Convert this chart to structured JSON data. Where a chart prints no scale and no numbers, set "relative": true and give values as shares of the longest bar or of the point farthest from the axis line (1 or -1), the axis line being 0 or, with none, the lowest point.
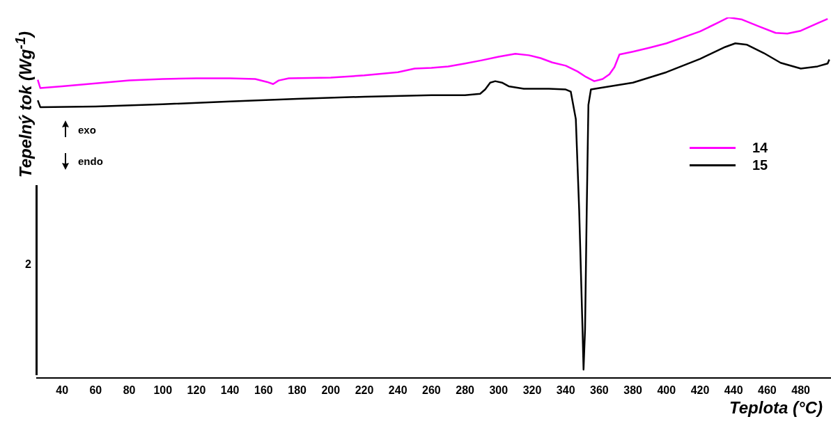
{
  "chart_data": {
    "type": "line",
    "relative": true,
    "xlabel": "Teplota (°C)",
    "ylabel": "Tepelný tok (Wg$^{-1}$)",
    "xlim": [
      25,
      498
    ],
    "xticks": [
      40,
      60,
      80,
      100,
      120,
      140,
      160,
      180,
      200,
      220,
      240,
      260,
      280,
      300,
      320,
      340,
      360,
      380,
      400,
      420,
      440,
      460,
      480
    ],
    "legend": "right",
    "marker": "none",
    "line_style": "solid",
    "grid": false,
    "annotations": [
      "exo",
      "endo",
      "2"
    ],
    "series": [
      {
        "name": "14",
        "color": "#ff00ff",
        "x": [
          25.5,
          27,
          40,
          60,
          80,
          100,
          120,
          140,
          155,
          162,
          165.7,
          169,
          175,
          200,
          220,
          240,
          250,
          260,
          270,
          280,
          290,
          300,
          310,
          318,
          325,
          332,
          340,
          347,
          352,
          357,
          362,
          366,
          369,
          372,
          380,
          390,
          400,
          420,
          430,
          437,
          445,
          455,
          465,
          472,
          480,
          490,
          496
        ],
        "values": [
          0.827,
          0.804,
          0.809,
          0.817,
          0.825,
          0.829,
          0.831,
          0.831,
          0.829,
          0.821,
          0.815,
          0.825,
          0.831,
          0.833,
          0.839,
          0.848,
          0.858,
          0.86,
          0.864,
          0.872,
          0.881,
          0.891,
          0.899,
          0.895,
          0.887,
          0.875,
          0.866,
          0.85,
          0.835,
          0.823,
          0.829,
          0.842,
          0.862,
          0.897,
          0.905,
          0.916,
          0.928,
          0.961,
          0.984,
          1,
          0.994,
          0.975,
          0.957,
          0.955,
          0.963,
          0.984,
          0.996
        ]
      },
      {
        "name": "15",
        "color": "#000000",
        "x": [
          25.5,
          27,
          60,
          100,
          140,
          180,
          220,
          260,
          280,
          289,
          292,
          295,
          298,
          302,
          306,
          315,
          330,
          340,
          343,
          346,
          348,
          350,
          350.6,
          351.5,
          352.5,
          353.5,
          355,
          360,
          380,
          400,
          420,
          435,
          441,
          448,
          458,
          468,
          480,
          490,
          496,
          497
        ],
        "values": [
          0.77,
          0.751,
          0.753,
          0.759,
          0.767,
          0.774,
          0.78,
          0.784,
          0.784,
          0.788,
          0.8,
          0.819,
          0.823,
          0.819,
          0.809,
          0.802,
          0.802,
          0.8,
          0.794,
          0.718,
          0.465,
          0.134,
          0.023,
          0.134,
          0.465,
          0.757,
          0.8,
          0.804,
          0.819,
          0.848,
          0.885,
          0.918,
          0.928,
          0.924,
          0.901,
          0.874,
          0.858,
          0.864,
          0.872,
          0.883
        ]
      }
    ]
  }
}
